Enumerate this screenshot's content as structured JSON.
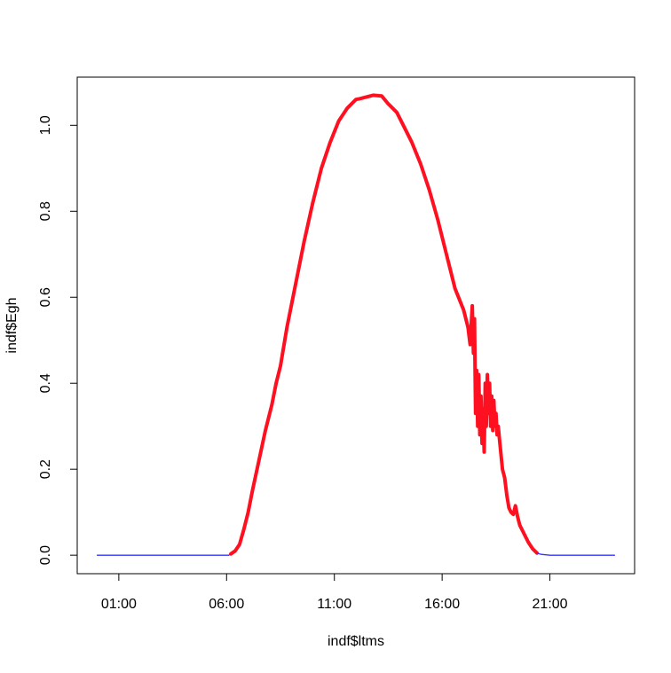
{
  "chart_data": {
    "type": "line",
    "title": "",
    "xlabel": "indf$ltms",
    "ylabel": "indf$Egh",
    "x_unit": "hours",
    "xlim": [
      -0.93,
      24.93
    ],
    "ylim": [
      -0.043,
      1.112
    ],
    "x_tick_values": [
      1,
      6,
      11,
      16,
      21
    ],
    "x_tick_labels": [
      "01:00",
      "06:00",
      "11:00",
      "16:00",
      "21:00"
    ],
    "y_tick_values": [
      0.0,
      0.2,
      0.4,
      0.6,
      0.8,
      1.0
    ],
    "y_tick_labels": [
      "0.0",
      "0.2",
      "0.4",
      "0.6",
      "0.8",
      "1.0"
    ],
    "grid": false,
    "legend": "none",
    "colors": {
      "night": "#3333ff",
      "day": "#ff1020",
      "axis": "#000000"
    },
    "series": [
      {
        "style": "night-thin",
        "color": "#3333ff",
        "x": [
          0.0,
          6.1,
          6.2
        ],
        "y": [
          0.0,
          0.0,
          0.003
        ]
      },
      {
        "style": "day-thick",
        "color": "#ff1020",
        "x": [
          6.2,
          6.4,
          6.6,
          6.8,
          7.0,
          7.2,
          7.5,
          7.8,
          8.1,
          8.3,
          8.5,
          8.6,
          8.8,
          9.2,
          9.6,
          10.0,
          10.4,
          10.8,
          11.2,
          11.6,
          12.0,
          12.2,
          12.5,
          12.8,
          13.2,
          13.5,
          13.7,
          13.9,
          14.2,
          14.6,
          15.0,
          15.4,
          15.8,
          16.2,
          16.6,
          17.0,
          17.2,
          17.3,
          17.4,
          17.45,
          17.5,
          17.55,
          17.6,
          17.65,
          17.7,
          17.75,
          17.8,
          17.85,
          17.9,
          17.95,
          18.0,
          18.05,
          18.1,
          18.15,
          18.2,
          18.25,
          18.3,
          18.35,
          18.4,
          18.45,
          18.5,
          18.55,
          18.6,
          18.7,
          18.8,
          18.9,
          19.0,
          19.1,
          19.2,
          19.3,
          19.4,
          19.5,
          19.6,
          19.8,
          20.0,
          20.2,
          20.4
        ],
        "y": [
          0.003,
          0.01,
          0.025,
          0.06,
          0.1,
          0.15,
          0.22,
          0.29,
          0.35,
          0.4,
          0.44,
          0.47,
          0.53,
          0.63,
          0.73,
          0.82,
          0.9,
          0.96,
          1.01,
          1.04,
          1.06,
          1.062,
          1.066,
          1.07,
          1.068,
          1.05,
          1.04,
          1.03,
          1.0,
          0.96,
          0.91,
          0.85,
          0.78,
          0.7,
          0.62,
          0.57,
          0.53,
          0.49,
          0.58,
          0.47,
          0.55,
          0.33,
          0.43,
          0.3,
          0.42,
          0.28,
          0.37,
          0.26,
          0.34,
          0.24,
          0.4,
          0.3,
          0.42,
          0.33,
          0.4,
          0.3,
          0.37,
          0.29,
          0.36,
          0.3,
          0.33,
          0.28,
          0.3,
          0.25,
          0.2,
          0.18,
          0.14,
          0.11,
          0.1,
          0.095,
          0.115,
          0.09,
          0.07,
          0.05,
          0.03,
          0.015,
          0.005
        ]
      },
      {
        "style": "night-thin",
        "color": "#3333ff",
        "x": [
          20.4,
          20.6,
          21.0,
          24.0
        ],
        "y": [
          0.005,
          0.002,
          0.0,
          0.0
        ]
      }
    ]
  }
}
